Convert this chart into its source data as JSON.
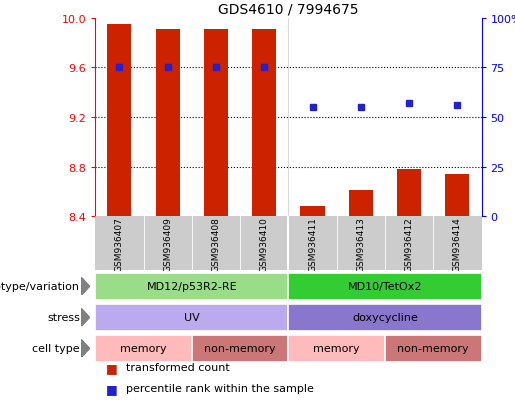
{
  "title": "GDS4610 / 7994675",
  "samples": [
    "GSM936407",
    "GSM936409",
    "GSM936408",
    "GSM936410",
    "GSM936411",
    "GSM936413",
    "GSM936412",
    "GSM936414"
  ],
  "bar_values": [
    9.95,
    9.91,
    9.91,
    9.91,
    8.48,
    8.61,
    8.78,
    8.74
  ],
  "percentile_values": [
    75,
    75,
    75,
    75,
    55,
    55,
    57,
    56
  ],
  "ylim": [
    8.4,
    10.0
  ],
  "yticks": [
    8.4,
    8.8,
    9.2,
    9.6,
    10.0
  ],
  "y2lim": [
    0,
    100
  ],
  "y2ticks": [
    0,
    25,
    50,
    75,
    100
  ],
  "bar_color": "#cc2200",
  "dot_color": "#2222cc",
  "bar_bottom": 8.4,
  "grid_values": [
    9.6,
    9.2,
    8.8
  ],
  "groups": [
    {
      "label": "MD12/p53R2-RE",
      "start": 0,
      "end": 4,
      "color": "#99dd88"
    },
    {
      "label": "MD10/TetOx2",
      "start": 4,
      "end": 8,
      "color": "#33cc33"
    }
  ],
  "stress": [
    {
      "label": "UV",
      "start": 0,
      "end": 4,
      "color": "#bbaaee"
    },
    {
      "label": "doxycycline",
      "start": 4,
      "end": 8,
      "color": "#8877cc"
    }
  ],
  "cell_types": [
    {
      "label": "memory",
      "start": 0,
      "end": 2,
      "color": "#ffbbbb"
    },
    {
      "label": "non-memory",
      "start": 2,
      "end": 4,
      "color": "#cc7777"
    },
    {
      "label": "memory",
      "start": 4,
      "end": 6,
      "color": "#ffbbbb"
    },
    {
      "label": "non-memory",
      "start": 6,
      "end": 8,
      "color": "#cc7777"
    }
  ],
  "row_labels": [
    "genotype/variation",
    "stress",
    "cell type"
  ],
  "legend_bar_label": "transformed count",
  "legend_dot_label": "percentile rank within the sample",
  "background_color": "#ffffff",
  "sample_bg": "#cccccc",
  "group_divider_col": "#ffffff"
}
